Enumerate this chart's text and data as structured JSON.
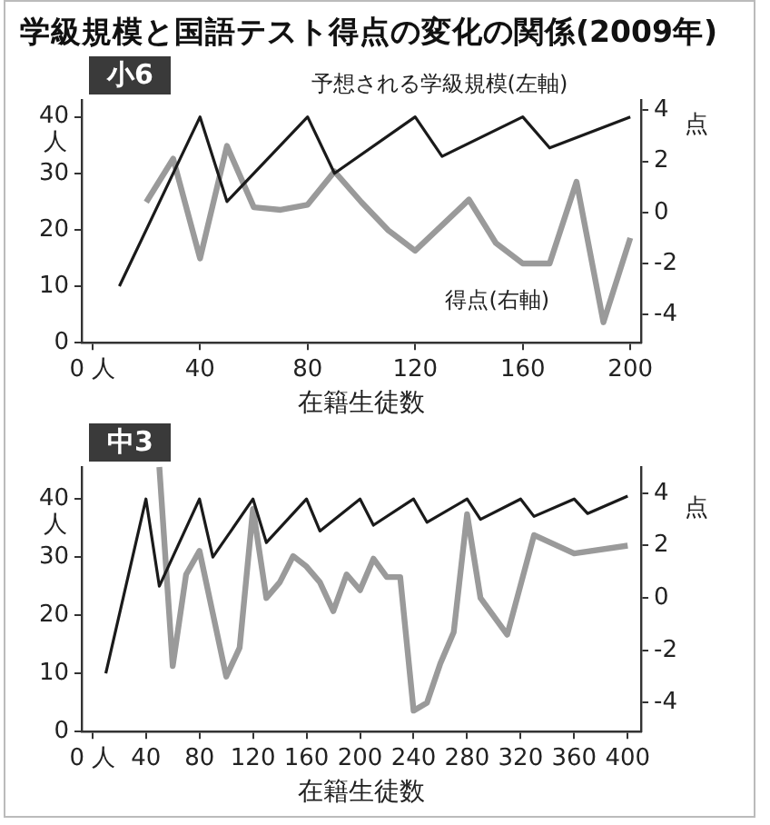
{
  "chart_data": [
    {
      "type": "line",
      "title": "学級規模と国語テスト得点の変化の関係(2009年)",
      "subtitle": "小6",
      "xlabel": "在籍生徒数",
      "ylabel": "人",
      "y2label": "点",
      "series": [
        {
          "name": "予想される学級規模(左軸)",
          "color": "#1a1a1a",
          "x": [
            10,
            40,
            50,
            80,
            90,
            120,
            130,
            160,
            170,
            200
          ],
          "values": [
            10,
            40,
            25,
            40,
            30,
            40,
            33,
            40,
            34.5,
            40
          ]
        },
        {
          "name": "得点(右軸)",
          "color": "#9a9a9a",
          "axis": "y2",
          "x": [
            20,
            30,
            40,
            50,
            60,
            70,
            80,
            90,
            100,
            110,
            120,
            130,
            140,
            150,
            160,
            170,
            180,
            190,
            200
          ],
          "values": [
            0.4,
            2.1,
            -1.8,
            2.6,
            0.2,
            0.1,
            0.3,
            1.6,
            0.4,
            -0.7,
            -1.5,
            -0.5,
            0.5,
            -1.2,
            -2,
            -2,
            1.2,
            -4.3,
            -1
          ]
        }
      ],
      "xlim": [
        -4,
        204
      ],
      "xticks": [
        {
          "value": 0,
          "label": "0 人"
        },
        40,
        80,
        120,
        160,
        200
      ],
      "ylim": [
        0,
        43
      ],
      "yticks": [
        0,
        10,
        20,
        30,
        40
      ],
      "y2lim": [
        -5.1,
        4.4
      ],
      "y2ticks": [
        -4,
        -2,
        0,
        2,
        4
      ],
      "grid": false,
      "legend": false
    },
    {
      "type": "line",
      "title": "中3",
      "xlabel": "在籍生徒数",
      "ylabel": "人",
      "y2label": "点",
      "series": [
        {
          "color": "#1a1a1a",
          "x": [
            10,
            40,
            50,
            80,
            90,
            120,
            130,
            160,
            170,
            200,
            210,
            240,
            250,
            280,
            290,
            320,
            330,
            360,
            370,
            400
          ],
          "values": [
            10,
            40,
            25,
            40,
            30,
            40,
            32.5,
            40,
            34.5,
            40,
            35.5,
            40,
            36,
            40,
            36.5,
            40,
            37,
            40,
            37.5,
            40.5
          ]
        },
        {
          "color": "#9a9a9a",
          "axis": "y2",
          "x": [
            50,
            60,
            70,
            80,
            90,
            100,
            110,
            120,
            130,
            140,
            150,
            160,
            170,
            180,
            190,
            200,
            210,
            220,
            230,
            240,
            250,
            260,
            270,
            280,
            290,
            300,
            310,
            330,
            360,
            400
          ],
          "values": [
            5,
            -2.6,
            0.9,
            1.8,
            -0.6,
            -3,
            -1.9,
            3.4,
            0,
            0.6,
            1.6,
            1.2,
            0.6,
            -0.5,
            0.9,
            0.3,
            1.5,
            0.8,
            0.8,
            -4.3,
            -4,
            -2.5,
            -1.3,
            3.2,
            0,
            -0.7,
            -1.4,
            2.4,
            1.7,
            2
          ]
        }
      ],
      "xlim": [
        -8,
        410
      ],
      "xticks": [
        {
          "value": 0,
          "label": "0 人"
        },
        40,
        80,
        120,
        160,
        200,
        240,
        280,
        320,
        360,
        400
      ],
      "ylim": [
        0,
        45.5
      ],
      "yticks": [
        0,
        10,
        20,
        30,
        40
      ],
      "y2lim": [
        -5.1,
        5
      ],
      "y2ticks": [
        -4,
        -2,
        0,
        2,
        4
      ],
      "grid": false,
      "legend": false
    }
  ]
}
